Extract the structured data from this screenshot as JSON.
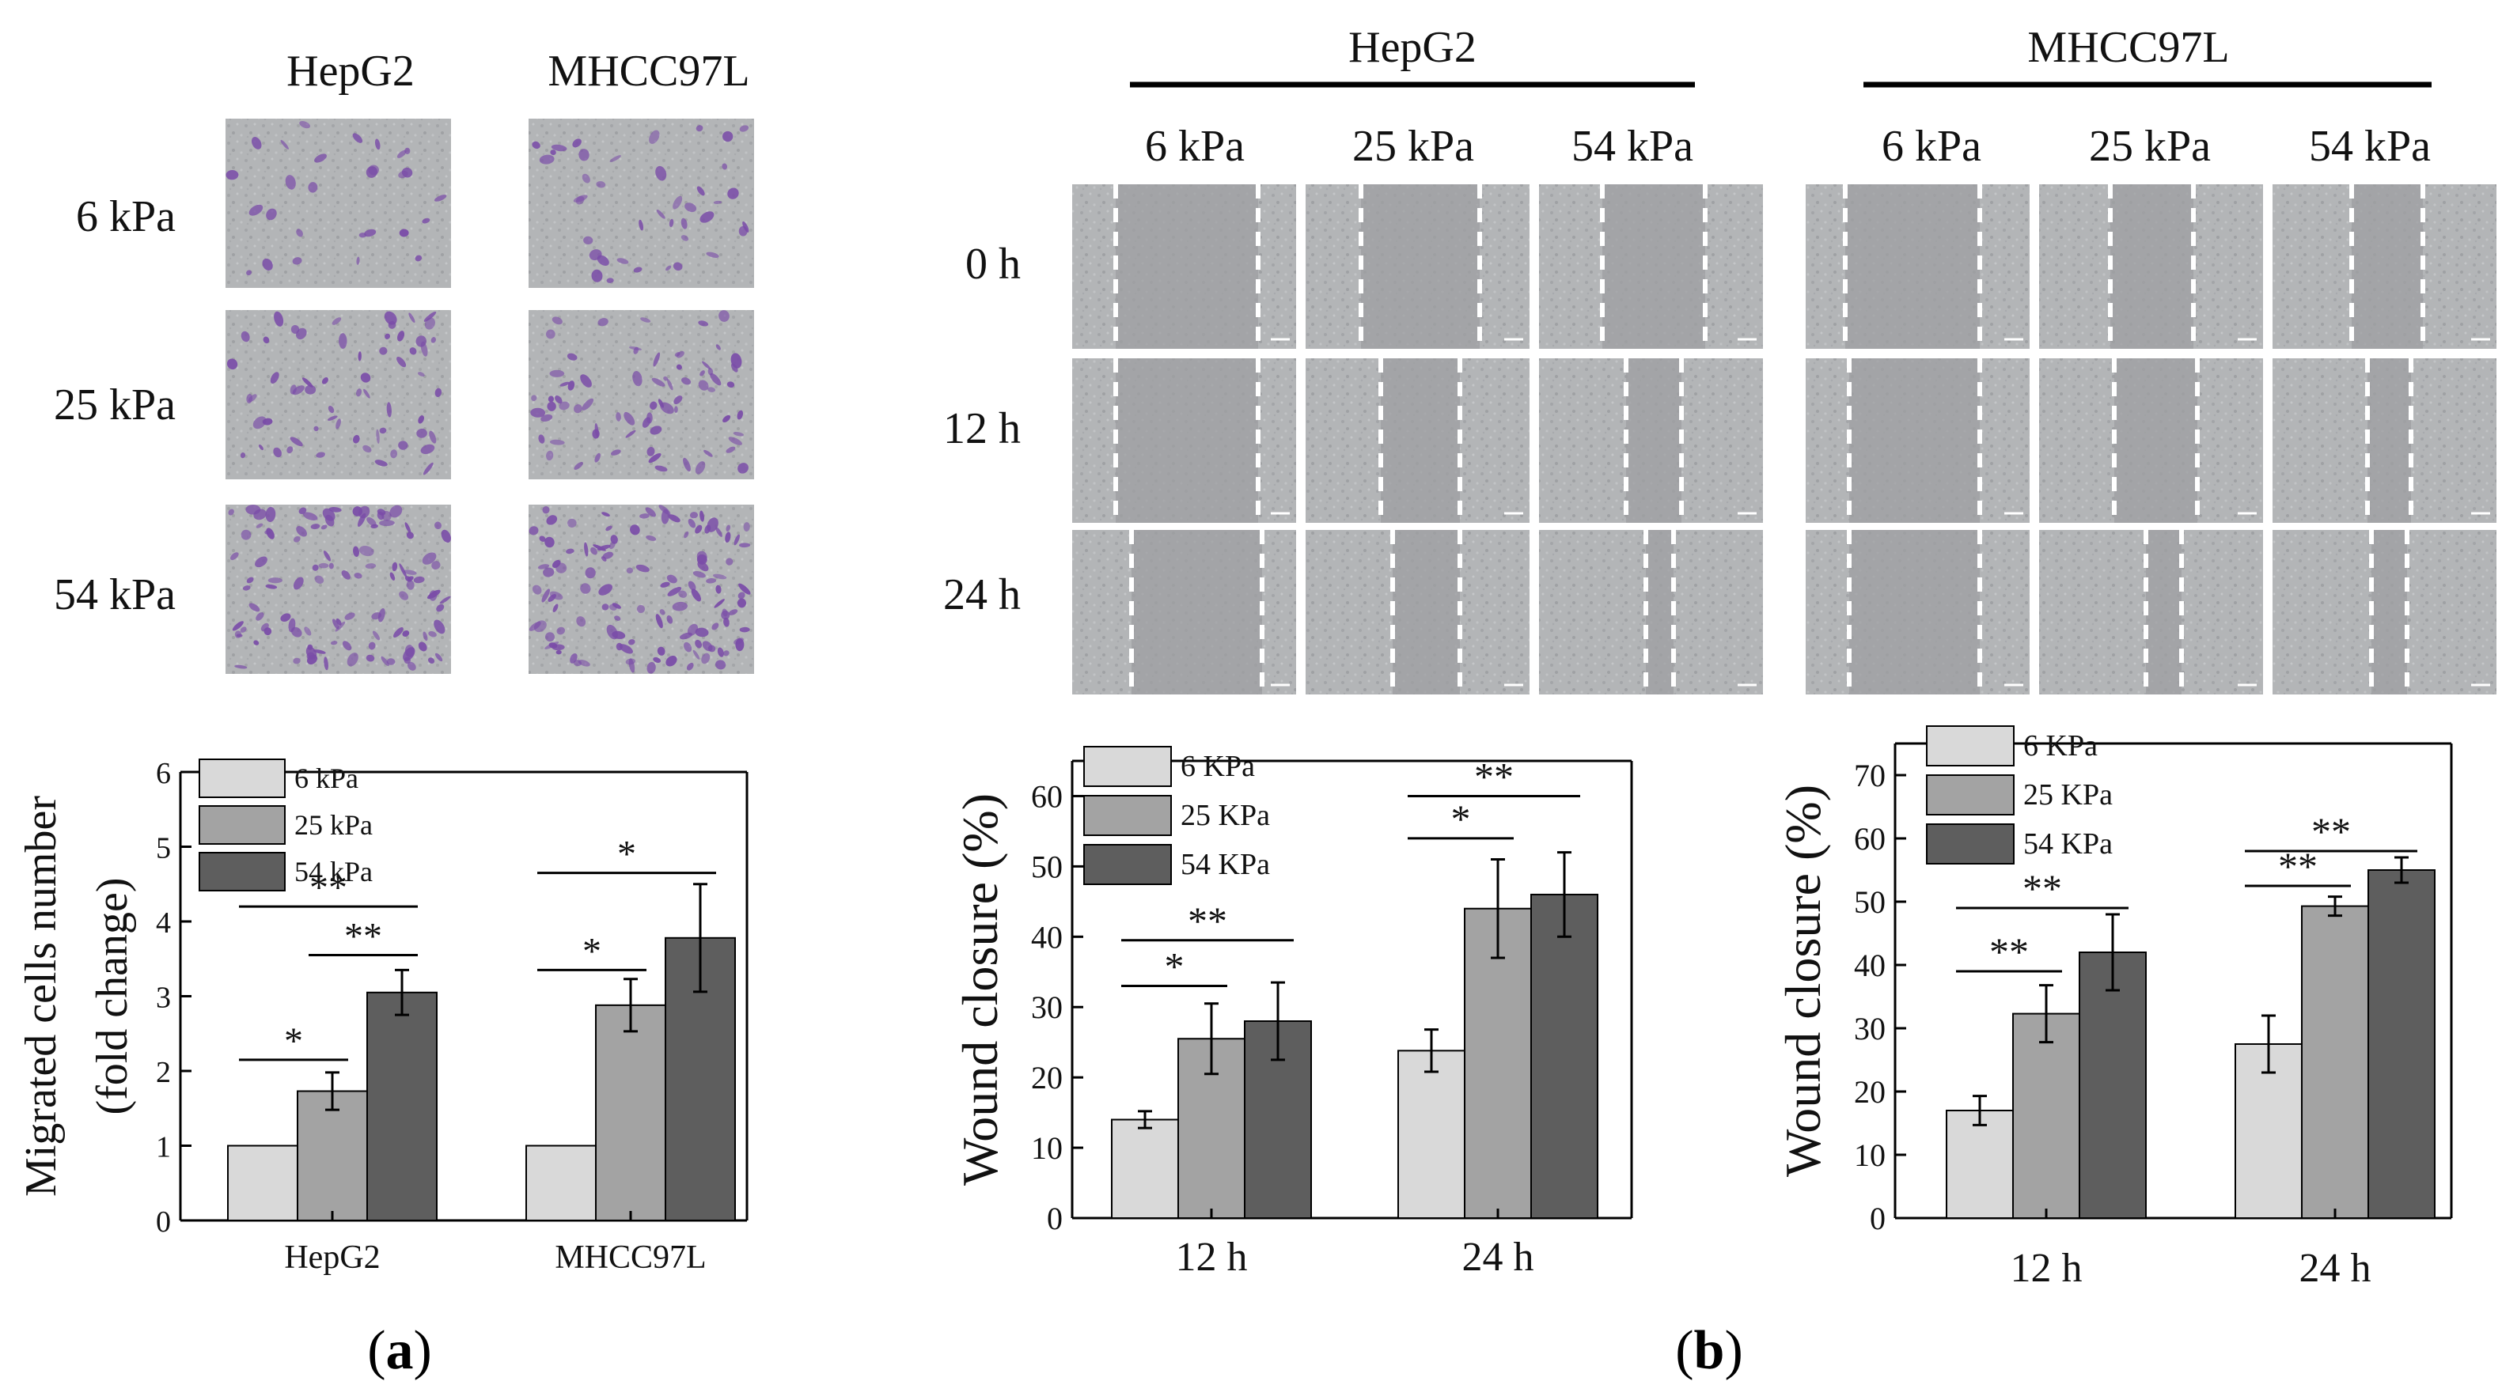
{
  "panel_labels": {
    "a": "(a)",
    "b": "(b)"
  },
  "colors": {
    "s6": "#d9d9d9",
    "s25": "#a3a3a3",
    "s54": "#5e5e5e",
    "stain": "#7a4ca8",
    "micro_bg": "#b4b6b8"
  },
  "panel_a": {
    "columns": [
      "HepG2",
      "MHCC97L"
    ],
    "rows": [
      "6 kPa",
      "25 kPa",
      "54 kPa"
    ]
  },
  "panel_b": {
    "groups": [
      "HepG2",
      "MHCC97L"
    ],
    "stiffness": [
      "6 kPa",
      "25 kPa",
      "54 kPa"
    ],
    "times": [
      "0 h",
      "12 h",
      "24 h"
    ]
  },
  "chart_data": [
    {
      "id": "a",
      "type": "bar",
      "categories": [
        "HepG2",
        "MHCC97L"
      ],
      "series": [
        {
          "name": "6 kPa",
          "values": [
            1.0,
            1.0
          ],
          "errors": [
            0,
            0
          ]
        },
        {
          "name": "25 kPa",
          "values": [
            1.73,
            2.88
          ],
          "errors": [
            0.25,
            0.35
          ]
        },
        {
          "name": "54 kPa",
          "values": [
            3.05,
            3.78
          ],
          "errors": [
            0.3,
            0.72
          ]
        }
      ],
      "ylabel_lines": [
        "Migrated cells number",
        "(fold change)"
      ],
      "xlabel": "",
      "ylim": [
        0,
        6
      ],
      "yticks": [
        "0",
        "1",
        "2",
        "3",
        "4",
        "5",
        "6"
      ],
      "legend": [
        "6 kPa",
        "25 kPa",
        "54 kPa"
      ],
      "significance": [
        {
          "category": 0,
          "from": 0,
          "to": 1,
          "y": 2.15,
          "text": "*"
        },
        {
          "category": 0,
          "from": 0,
          "to": 2,
          "y": 4.2,
          "text": "**"
        },
        {
          "category": 0,
          "from": 1,
          "to": 2,
          "y": 3.55,
          "text": "**"
        },
        {
          "category": 1,
          "from": 0,
          "to": 1,
          "y": 3.35,
          "text": "*"
        },
        {
          "category": 1,
          "from": 0,
          "to": 2,
          "y": 4.65,
          "text": "*"
        }
      ]
    },
    {
      "id": "b-hepg2",
      "type": "bar",
      "categories": [
        "12 h",
        "24 h"
      ],
      "series": [
        {
          "name": "6 KPa",
          "values": [
            14,
            23.8
          ],
          "errors": [
            1.2,
            3
          ]
        },
        {
          "name": "25 KPa",
          "values": [
            25.5,
            44
          ],
          "errors": [
            5,
            7
          ]
        },
        {
          "name": "54 KPa",
          "values": [
            28,
            46
          ],
          "errors": [
            5.5,
            6
          ]
        }
      ],
      "ylabel": "Wound closure (%)",
      "xlabel": "",
      "ylim": [
        0,
        65
      ],
      "yticks": [
        "0",
        "10",
        "20",
        "30",
        "40",
        "50",
        "60"
      ],
      "legend": [
        "6 KPa",
        "25 KPa",
        "54 KPa"
      ],
      "significance": [
        {
          "category": 0,
          "from": 0,
          "to": 1,
          "y": 33,
          "text": "*"
        },
        {
          "category": 0,
          "from": 0,
          "to": 2,
          "y": 39.5,
          "text": "**"
        },
        {
          "category": 1,
          "from": 0,
          "to": 1,
          "y": 54,
          "text": "*"
        },
        {
          "category": 1,
          "from": 0,
          "to": 2,
          "y": 60,
          "text": "**"
        }
      ]
    },
    {
      "id": "b-mhcc97l",
      "type": "bar",
      "categories": [
        "12 h",
        "24 h"
      ],
      "series": [
        {
          "name": "6 KPa",
          "values": [
            17,
            27.5
          ],
          "errors": [
            2.3,
            4.5
          ]
        },
        {
          "name": "25 KPa",
          "values": [
            32.3,
            49.3
          ],
          "errors": [
            4.5,
            1.5
          ]
        },
        {
          "name": "54 KPa",
          "values": [
            42,
            55
          ],
          "errors": [
            6,
            2
          ]
        }
      ],
      "ylabel": "Wound closure (%)",
      "xlabel": "",
      "ylim": [
        0,
        75
      ],
      "yticks": [
        "0",
        "10",
        "20",
        "30",
        "40",
        "50",
        "60",
        "70"
      ],
      "legend": [
        "6 KPa",
        "25 KPa",
        "54 KPa"
      ],
      "significance": [
        {
          "category": 0,
          "from": 0,
          "to": 1,
          "y": 39,
          "text": "**"
        },
        {
          "category": 0,
          "from": 0,
          "to": 2,
          "y": 49,
          "text": "**"
        },
        {
          "category": 1,
          "from": 0,
          "to": 1,
          "y": 52.5,
          "text": "**"
        },
        {
          "category": 1,
          "from": 0,
          "to": 2,
          "y": 58,
          "text": "**"
        }
      ]
    }
  ]
}
